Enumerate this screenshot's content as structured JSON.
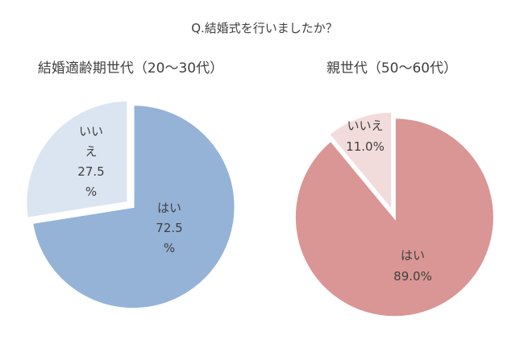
{
  "title": "Q.結婚式を行いましたか？",
  "chart_data": [
    {
      "type": "pie",
      "title": "結婚適齢期世代（20～30代）",
      "categories": [
        "はい",
        "いいえ"
      ],
      "values": [
        72.5,
        27.5
      ],
      "colors": [
        "#94b3d7",
        "#dbe5f1"
      ],
      "data_labels": [
        [
          "はい",
          "72.5",
          "%"
        ],
        [
          "いい",
          "え",
          "27.5",
          "%"
        ]
      ]
    },
    {
      "type": "pie",
      "title": "親世代（50～60代）",
      "categories": [
        "はい",
        "いいえ"
      ],
      "values": [
        89.0,
        11.0
      ],
      "colors": [
        "#d99694",
        "#f2dcdb"
      ],
      "data_labels": [
        [
          "はい",
          "89.0%"
        ],
        [
          "いいえ",
          "11.0%"
        ]
      ]
    }
  ]
}
